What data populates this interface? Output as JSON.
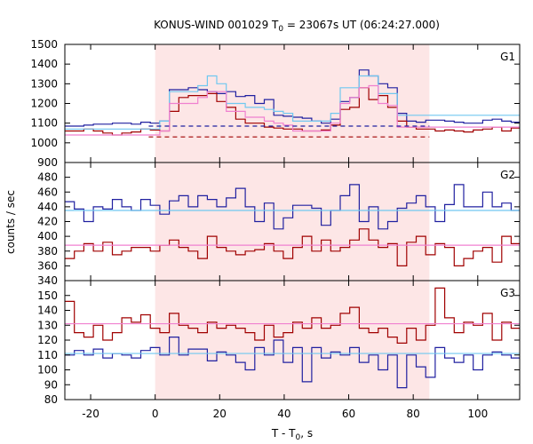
{
  "chart_data": {
    "type": "line",
    "title": "KONUS-WIND 001029 T",
    "title_sub": "0",
    "title_rest": " = 23067s UT (06:24:27.000)",
    "xlabel": "T - T",
    "xlabel_sub": "0",
    "xlabel_rest": ", s",
    "ylabel": "counts / sec",
    "xlim": [
      -28,
      113
    ],
    "xticks": [
      -20,
      0,
      20,
      40,
      60,
      80,
      100
    ],
    "highlight_range": [
      0,
      85
    ],
    "colors": {
      "highlight": "#fde6e6",
      "blue": "#2020a0",
      "darkred": "#a00000",
      "lightblue": "#70c8f0",
      "pink": "#f080d0"
    },
    "panels": [
      {
        "label": "G1",
        "ylim": [
          900,
          1500
        ],
        "yticks": [
          900,
          1000,
          1100,
          1200,
          1300,
          1400,
          1500
        ],
        "bin_start": -28,
        "bin_width": 2.944,
        "series": [
          {
            "color_key": "blue",
            "style": "step",
            "values": [
              1085,
              1085,
              1090,
              1095,
              1095,
              1100,
              1100,
              1095,
              1105,
              1100,
              1110,
              1270,
              1270,
              1280,
              1270,
              1260,
              1250,
              1260,
              1235,
              1240,
              1200,
              1220,
              1140,
              1135,
              1130,
              1125,
              1110,
              1100,
              1120,
              1210,
              1230,
              1370,
              1340,
              1300,
              1280,
              1150,
              1110,
              1105,
              1115,
              1115,
              1110,
              1105,
              1100,
              1100,
              1115,
              1120,
              1110,
              1105
            ]
          },
          {
            "color_key": "darkred",
            "style": "step",
            "values": [
              1060,
              1060,
              1070,
              1060,
              1050,
              1040,
              1050,
              1055,
              1070,
              1065,
              1060,
              1160,
              1230,
              1240,
              1240,
              1250,
              1210,
              1180,
              1120,
              1100,
              1100,
              1080,
              1075,
              1070,
              1070,
              1060,
              1060,
              1065,
              1090,
              1170,
              1180,
              1280,
              1220,
              1240,
              1180,
              1110,
              1080,
              1070,
              1070,
              1060,
              1065,
              1060,
              1055,
              1065,
              1070,
              1080,
              1060,
              1075
            ]
          },
          {
            "color_key": "lightblue",
            "style": "step",
            "values": [
              1070,
              1070,
              1070,
              1070,
              1070,
              1070,
              1070,
              1070,
              1070,
              1070,
              1110,
              1260,
              1260,
              1260,
              1290,
              1340,
              1300,
              1200,
              1200,
              1180,
              1180,
              1170,
              1160,
              1150,
              1110,
              1110,
              1110,
              1110,
              1150,
              1280,
              1280,
              1340,
              1340,
              1250,
              1250,
              1140,
              1140,
              1140,
              1140,
              1140,
              1140,
              1140,
              1140,
              1140,
              1140,
              1140,
              1140,
              1140
            ]
          },
          {
            "color_key": "pink",
            "style": "step",
            "values": [
              1040,
              1040,
              1040,
              1040,
              1040,
              1040,
              1040,
              1040,
              1040,
              1040,
              1060,
              1200,
              1200,
              1200,
              1230,
              1260,
              1260,
              1160,
              1160,
              1130,
              1130,
              1110,
              1100,
              1090,
              1060,
              1060,
              1060,
              1060,
              1100,
              1200,
              1230,
              1280,
              1290,
              1200,
              1190,
              1080,
              1080,
              1080,
              1080,
              1080,
              1080,
              1080,
              1080,
              1080,
              1080,
              1080,
              1080,
              1080
            ]
          },
          {
            "color_key": "blue",
            "style": "dashed",
            "x_range": [
              -2,
              85
            ],
            "value": 1085
          },
          {
            "color_key": "darkred",
            "style": "dashed",
            "x_range": [
              -2,
              85
            ],
            "value": 1030
          }
        ]
      },
      {
        "label": "G2",
        "ylim": [
          340,
          500
        ],
        "yticks": [
          340,
          360,
          380,
          400,
          420,
          440,
          460,
          480
        ],
        "bin_start": -28,
        "bin_width": 2.944,
        "series": [
          {
            "color_key": "blue",
            "style": "step",
            "values": [
              447,
              437,
              420,
              440,
              437,
              450,
              440,
              435,
              450,
              442,
              430,
              448,
              455,
              440,
              455,
              450,
              440,
              452,
              465,
              440,
              420,
              445,
              410,
              425,
              442,
              442,
              438,
              415,
              435,
              455,
              470,
              420,
              440,
              410,
              420,
              438,
              445,
              455,
              440,
              420,
              443,
              470,
              440,
              440,
              460,
              440,
              445,
              435
            ]
          },
          {
            "color_key": "darkred",
            "style": "step",
            "values": [
              370,
              380,
              390,
              380,
              392,
              375,
              380,
              385,
              385,
              380,
              388,
              395,
              385,
              380,
              370,
              400,
              385,
              380,
              375,
              380,
              382,
              390,
              380,
              370,
              385,
              400,
              380,
              395,
              380,
              385,
              395,
              410,
              395,
              385,
              390,
              360,
              392,
              400,
              375,
              390,
              385,
              360,
              370,
              380,
              385,
              365,
              400,
              390
            ]
          },
          {
            "color_key": "lightblue",
            "style": "line",
            "value": 435
          },
          {
            "color_key": "pink",
            "style": "line",
            "value": 388
          }
        ]
      },
      {
        "label": "G3",
        "ylim": [
          80,
          160
        ],
        "yticks": [
          80,
          90,
          100,
          110,
          120,
          130,
          140,
          150
        ],
        "bin_start": -28,
        "bin_width": 2.944,
        "series": [
          {
            "color_key": "blue",
            "style": "step",
            "values": [
              110,
              113,
              110,
              114,
              108,
              111,
              110,
              108,
              113,
              115,
              110,
              122,
              110,
              114,
              114,
              106,
              112,
              110,
              105,
              100,
              115,
              110,
              120,
              105,
              115,
              92,
              115,
              108,
              112,
              110,
              115,
              105,
              110,
              100,
              110,
              88,
              110,
              102,
              95,
              115,
              108,
              105,
              110,
              100,
              110,
              112,
              110,
              108
            ]
          },
          {
            "color_key": "darkred",
            "style": "step",
            "values": [
              146,
              125,
              122,
              130,
              120,
              125,
              135,
              132,
              137,
              128,
              125,
              138,
              130,
              128,
              125,
              132,
              128,
              130,
              128,
              125,
              120,
              130,
              122,
              125,
              132,
              128,
              135,
              128,
              130,
              138,
              142,
              128,
              125,
              128,
              122,
              118,
              128,
              120,
              130,
              155,
              135,
              125,
              132,
              130,
              138,
              120,
              132,
              128
            ]
          },
          {
            "color_key": "lightblue",
            "style": "line",
            "value": 111
          },
          {
            "color_key": "pink",
            "style": "line",
            "value": 131
          }
        ]
      }
    ]
  }
}
